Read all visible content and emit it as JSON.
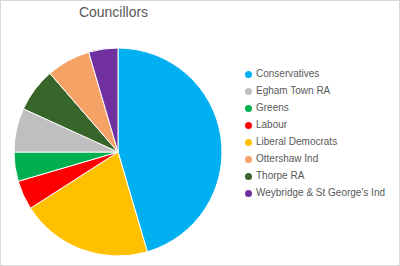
{
  "chart_data": {
    "type": "pie",
    "title": "Councillors",
    "categories": [
      "Conservatives",
      "Liberal Democrats",
      "Labour",
      "Greens",
      "Egham Town RA",
      "Thorpe RA",
      "Ottershaw Ind",
      "Weybridge & St George's Ind"
    ],
    "values": [
      20,
      9,
      2,
      2,
      3,
      3,
      3,
      2
    ],
    "colors": [
      "#00b0f0",
      "#ffc000",
      "#ff0000",
      "#00b050",
      "#bfbfbf",
      "#38652a",
      "#f4a266",
      "#7030a0"
    ],
    "legend": "right"
  }
}
